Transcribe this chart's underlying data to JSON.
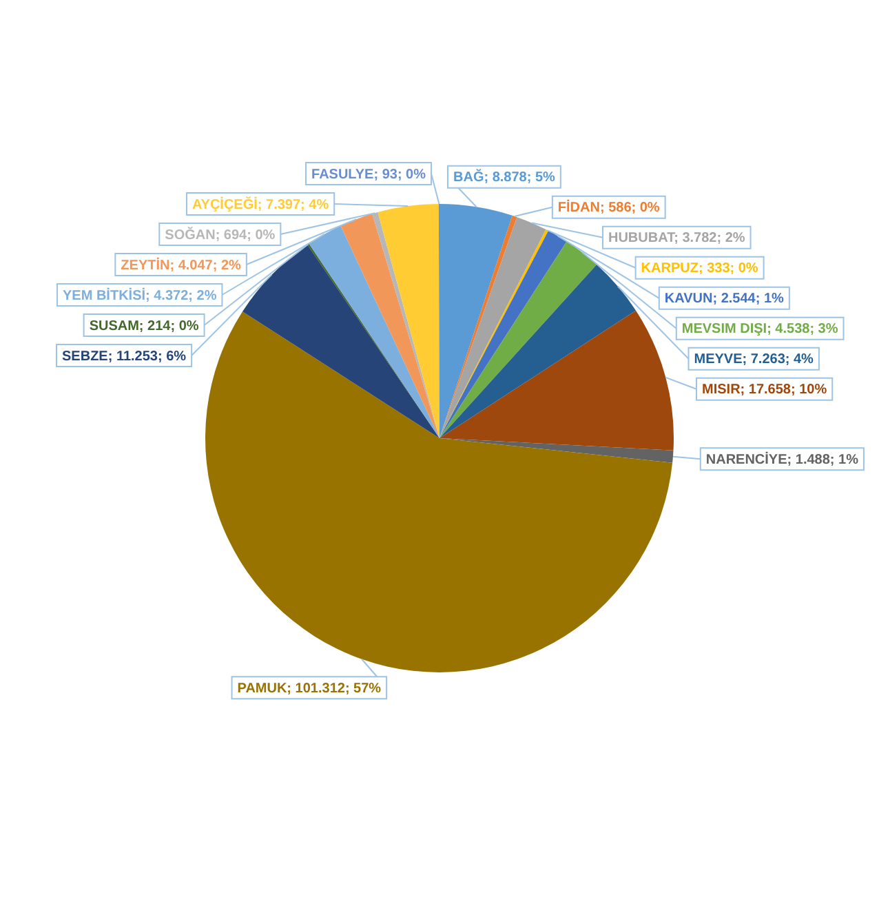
{
  "chart_data": {
    "type": "pie",
    "legend": false,
    "categories": [
      "BAĞ",
      "FİDAN",
      "HUBUBAT",
      "KARPUZ",
      "KAVUN",
      "MEVSIM DIŞI",
      "MEYVE",
      "MISIR",
      "NARENCİYE",
      "PAMUK",
      "SEBZE",
      "SUSAM",
      "YEM BİTKİSİ",
      "ZEYTİN",
      "SOĞAN",
      "AYÇİÇEĞİ",
      "FASULYE"
    ],
    "values": [
      8878,
      586,
      3782,
      333,
      2544,
      4538,
      7263,
      17658,
      1488,
      101312,
      11253,
      214,
      4372,
      4047,
      694,
      7397,
      93
    ],
    "value_labels": [
      "8.878; 5%",
      "586; 0%",
      "3.782; 2%",
      "333; 0%",
      "2.544; 1%",
      "4.538; 3%",
      "7.263; 4%",
      "17.658; 10%",
      "1.488; 1%",
      "101.312; 57%",
      "11.253; 6%",
      "214; 0%",
      "4.372; 2%",
      "4.047; 2%",
      "694; 0%",
      "7.397; 4%",
      "93; 0%"
    ],
    "colors": [
      "#5b9bd5",
      "#ed7d31",
      "#a5a5a5",
      "#ffc000",
      "#4472c4",
      "#70ad47",
      "#255e91",
      "#9e480e",
      "#636363",
      "#997300",
      "#264478",
      "#43682b",
      "#7cafdd",
      "#f1975a",
      "#b7b7b7",
      "#ffcd33",
      "#698ed0"
    ]
  }
}
